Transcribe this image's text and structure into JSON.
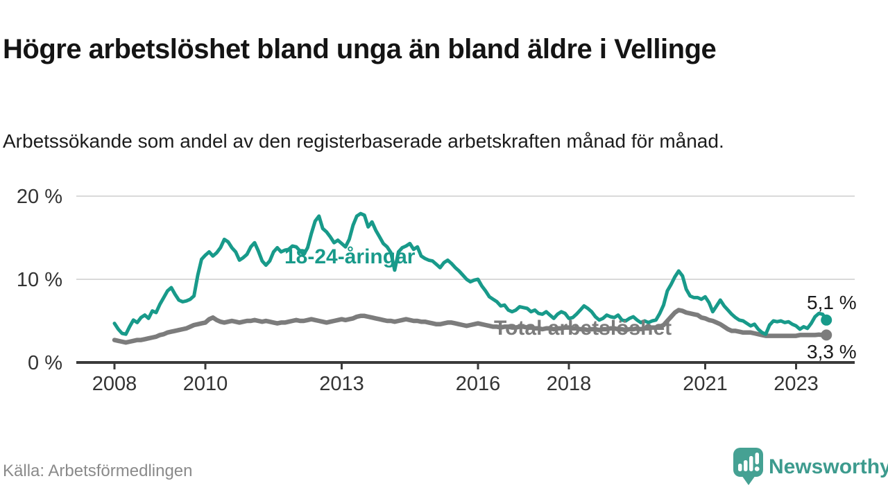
{
  "header": {
    "title": "Högre arbetslöshet bland unga än bland äldre i Vellinge",
    "subtitle": "Arbetssökande som andel av den registerbaserade arbetskraften månad för månad."
  },
  "chart_data": {
    "type": "line",
    "unit": "%",
    "x_start": "2008-01",
    "x_end": "2023-09",
    "x_cadence": "monthly",
    "x_ticks": [
      2008,
      2010,
      2013,
      2016,
      2018,
      2021,
      2023
    ],
    "y_ticks": [
      0,
      10,
      20
    ],
    "y_tick_suffix": " %",
    "ylim": [
      0,
      21
    ],
    "grid": true,
    "legend_position": "inline-labels",
    "series": [
      {
        "name": "18-24-åringar",
        "color": "#189a8a",
        "end_label": "5,1 %",
        "values": [
          4.7,
          4.0,
          3.5,
          3.4,
          4.3,
          5.1,
          4.8,
          5.4,
          5.7,
          5.3,
          6.2,
          6.0,
          7.0,
          7.8,
          8.6,
          9.0,
          8.2,
          7.5,
          7.3,
          7.4,
          7.6,
          8.0,
          10.5,
          12.4,
          12.9,
          13.3,
          12.8,
          13.2,
          13.8,
          14.8,
          14.5,
          13.8,
          13.3,
          12.3,
          12.6,
          13.0,
          13.9,
          14.4,
          13.4,
          12.2,
          11.7,
          12.2,
          13.3,
          13.8,
          13.3,
          13.5,
          13.6,
          14.0,
          13.9,
          13.4,
          13.0,
          13.8,
          15.5,
          17.0,
          17.6,
          16.1,
          15.7,
          15.1,
          14.4,
          14.7,
          14.3,
          13.9,
          14.8,
          16.5,
          17.6,
          17.9,
          17.7,
          16.3,
          16.9,
          15.9,
          15.1,
          14.3,
          13.9,
          13.2,
          11.1,
          13.3,
          13.8,
          14.0,
          14.3,
          13.6,
          13.9,
          12.8,
          12.5,
          12.3,
          12.2,
          11.8,
          11.4,
          12.0,
          12.3,
          11.9,
          11.4,
          11.0,
          10.5,
          10.0,
          9.7,
          9.9,
          10.0,
          9.2,
          8.6,
          7.9,
          7.6,
          7.3,
          6.8,
          6.9,
          6.3,
          6.1,
          6.3,
          6.7,
          6.6,
          6.5,
          6.1,
          6.3,
          5.9,
          5.8,
          6.1,
          5.7,
          5.3,
          5.8,
          6.1,
          5.9,
          5.3,
          5.4,
          5.8,
          6.3,
          6.8,
          6.5,
          6.1,
          5.5,
          5.1,
          5.3,
          5.7,
          5.5,
          5.4,
          5.7,
          5.1,
          5.0,
          5.3,
          5.5,
          5.1,
          4.8,
          5.0,
          4.8,
          5.0,
          5.1,
          5.9,
          6.9,
          8.6,
          9.4,
          10.3,
          11.0,
          10.4,
          8.8,
          8.0,
          7.8,
          7.8,
          7.6,
          7.9,
          7.2,
          6.1,
          6.8,
          7.5,
          6.8,
          6.3,
          5.8,
          5.4,
          5.1,
          5.0,
          4.7,
          4.4,
          4.6,
          4.0,
          3.6,
          3.4,
          4.5,
          5.0,
          4.9,
          5.0,
          4.8,
          4.9,
          4.6,
          4.4,
          4.0,
          4.3,
          4.1,
          4.7,
          5.5,
          5.9,
          5.8,
          5.1
        ]
      },
      {
        "name": "Total arbetslöshet",
        "color": "#7c7c7c",
        "end_label": "3,3 %",
        "values": [
          2.7,
          2.6,
          2.5,
          2.4,
          2.5,
          2.6,
          2.7,
          2.7,
          2.8,
          2.9,
          3.0,
          3.1,
          3.3,
          3.4,
          3.6,
          3.7,
          3.8,
          3.9,
          4.0,
          4.1,
          4.3,
          4.5,
          4.6,
          4.7,
          4.8,
          5.2,
          5.4,
          5.1,
          4.9,
          4.8,
          4.9,
          5.0,
          4.9,
          4.8,
          4.9,
          5.0,
          5.0,
          5.1,
          5.0,
          4.9,
          5.0,
          4.9,
          4.8,
          4.7,
          4.8,
          4.8,
          4.9,
          5.0,
          5.1,
          5.0,
          5.0,
          5.1,
          5.2,
          5.1,
          5.0,
          4.9,
          4.8,
          4.9,
          5.0,
          5.1,
          5.2,
          5.1,
          5.2,
          5.3,
          5.5,
          5.6,
          5.6,
          5.5,
          5.4,
          5.3,
          5.2,
          5.1,
          5.0,
          5.0,
          4.9,
          5.0,
          5.1,
          5.2,
          5.1,
          5.0,
          5.0,
          4.9,
          4.9,
          4.8,
          4.7,
          4.6,
          4.6,
          4.7,
          4.8,
          4.8,
          4.7,
          4.6,
          4.5,
          4.4,
          4.5,
          4.6,
          4.7,
          4.6,
          4.5,
          4.4,
          4.3,
          4.3,
          4.2,
          4.3,
          4.3,
          4.2,
          4.2,
          4.3,
          4.3,
          4.2,
          4.2,
          4.1,
          4.1,
          4.0,
          4.1,
          4.1,
          4.0,
          4.1,
          4.1,
          4.2,
          4.2,
          4.1,
          4.1,
          4.0,
          4.0,
          3.9,
          4.0,
          4.0,
          3.9,
          4.0,
          4.0,
          4.1,
          4.1,
          4.0,
          4.0,
          3.9,
          4.0,
          4.0,
          4.1,
          4.0,
          4.1,
          4.1,
          4.2,
          4.2,
          4.3,
          4.5,
          5.0,
          5.5,
          6.0,
          6.3,
          6.2,
          6.0,
          5.9,
          5.8,
          5.7,
          5.4,
          5.3,
          5.1,
          5.0,
          4.8,
          4.6,
          4.3,
          4.0,
          3.8,
          3.8,
          3.7,
          3.6,
          3.6,
          3.6,
          3.5,
          3.4,
          3.3,
          3.2,
          3.2,
          3.2,
          3.2,
          3.2,
          3.2,
          3.2,
          3.2,
          3.2,
          3.3,
          3.3,
          3.3,
          3.3,
          3.3,
          3.35,
          3.3,
          3.3
        ]
      }
    ]
  },
  "footer": {
    "source": "Källa: Arbetsförmedlingen",
    "brand": "Newsworthy"
  },
  "colors": {
    "young": "#189a8a",
    "total": "#7c7c7c",
    "axis": "#3a3a3a",
    "gridline": "#d9d9d9",
    "brand_teal": "#45a193"
  }
}
